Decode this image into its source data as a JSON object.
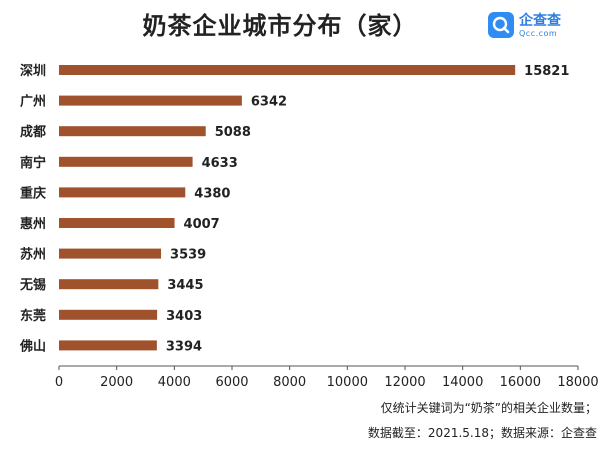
{
  "title": "奶茶企业城市分布（家）",
  "logo": {
    "name": "企查查",
    "sub": "Qcc.com",
    "color": "#2f8cf0"
  },
  "notes": {
    "line1": "仅统计关键词为“奶茶”的相关企业数量；",
    "line2": "数据截至：2021.5.18；数据来源：企查查"
  },
  "chart_data": {
    "type": "bar",
    "orientation": "horizontal",
    "categories": [
      "深圳",
      "广州",
      "成都",
      "南宁",
      "重庆",
      "惠州",
      "苏州",
      "无锡",
      "东莞",
      "佛山"
    ],
    "values": [
      15821,
      6342,
      5088,
      4633,
      4380,
      4007,
      3539,
      3445,
      3403,
      3394
    ],
    "xlim": [
      0,
      18000
    ],
    "xticks": [
      0,
      2000,
      4000,
      6000,
      8000,
      10000,
      12000,
      14000,
      16000,
      18000
    ],
    "bar_color": "#a0522d",
    "grid": false,
    "legend": "none"
  }
}
